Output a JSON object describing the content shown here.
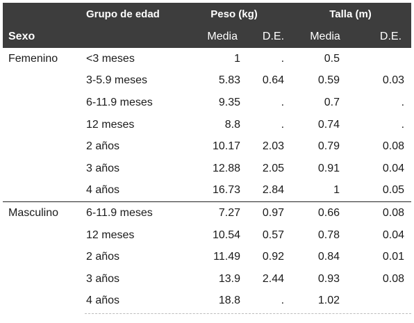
{
  "header": {
    "grupo_label": "Grupo de edad",
    "peso_label": "Peso (kg)",
    "talla_label": "Talla (m)",
    "sexo_label": "Sexo",
    "media_label": "Media",
    "de_label": "D.E."
  },
  "groups": [
    {
      "sexo": "Femenino",
      "rows": [
        {
          "grupo": "<3 meses",
          "peso_media": "1",
          "peso_de": ".",
          "talla_media": "0.5",
          "talla_de": ""
        },
        {
          "grupo": "3-5.9 meses",
          "peso_media": "5.83",
          "peso_de": "0.64",
          "talla_media": "0.59",
          "talla_de": "0.03"
        },
        {
          "grupo": "6-11.9 meses",
          "peso_media": "9.35",
          "peso_de": ".",
          "talla_media": "0.7",
          "talla_de": "."
        },
        {
          "grupo": "12 meses",
          "peso_media": "8.8",
          "peso_de": ".",
          "talla_media": "0.74",
          "talla_de": "."
        },
        {
          "grupo": "2 años",
          "peso_media": "10.17",
          "peso_de": "2.03",
          "talla_media": "0.79",
          "talla_de": "0.08"
        },
        {
          "grupo": "3 años",
          "peso_media": "12.88",
          "peso_de": "2.05",
          "talla_media": "0.91",
          "talla_de": "0.04"
        },
        {
          "grupo": "4 años",
          "peso_media": "16.73",
          "peso_de": "2.84",
          "talla_media": "1",
          "talla_de": "0.05"
        }
      ]
    },
    {
      "sexo": "Masculino",
      "rows": [
        {
          "grupo": "6-11.9 meses",
          "peso_media": "7.27",
          "peso_de": "0.97",
          "talla_media": "0.66",
          "talla_de": "0.08"
        },
        {
          "grupo": "12 meses",
          "peso_media": "10.54",
          "peso_de": "0.57",
          "talla_media": "0.78",
          "talla_de": "0.04"
        },
        {
          "grupo": "2 años",
          "peso_media": "11.49",
          "peso_de": "0.92",
          "talla_media": "0.84",
          "talla_de": "0.01"
        },
        {
          "grupo": "3 años",
          "peso_media": "13.9",
          "peso_de": "2.44",
          "talla_media": "0.93",
          "talla_de": "0.08"
        },
        {
          "grupo": "4 años",
          "peso_media": "18.8",
          "peso_de": ".",
          "talla_media": "1.02",
          "talla_de": ""
        }
      ]
    }
  ]
}
